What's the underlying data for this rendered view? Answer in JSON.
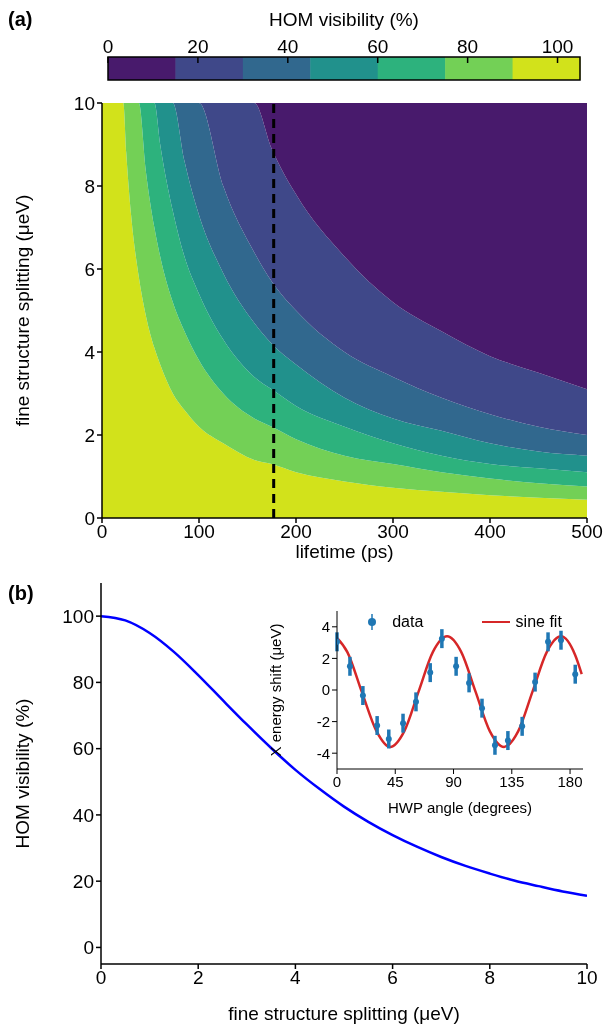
{
  "chart_data": [
    {
      "type": "area",
      "title": "(a)",
      "xlabel": "lifetime (ps)",
      "ylabel": "fine structure splitting (μeV)",
      "clabel": "HOM visibility (%)",
      "clim": [
        0,
        105
      ],
      "cticks": [
        0,
        20,
        40,
        60,
        80,
        100
      ],
      "xlim": [
        0,
        500
      ],
      "xticks": [
        0,
        100,
        200,
        300,
        400,
        500
      ],
      "ylim": [
        0,
        10
      ],
      "yticks": [
        0,
        2,
        4,
        6,
        8,
        10
      ],
      "x": [
        0,
        22,
        25,
        30,
        38,
        45,
        54,
        60,
        73,
        85,
        100,
        125,
        157,
        175,
        200,
        250,
        300,
        350,
        400,
        450,
        500
      ],
      "stacked": true,
      "series": [
        {
          "color": "#d2e21b",
          "values": [
            10,
            10,
            8.8,
            7.3,
            5.8,
            4.9,
            4.1,
            3.7,
            3.0,
            2.6,
            2.2,
            1.8,
            1.4,
            1.3,
            1.1,
            0.88,
            0.73,
            0.63,
            0.55,
            0.49,
            0.44
          ]
        },
        {
          "color": "#73d056",
          "values": [
            0,
            0,
            1.2,
            2.7,
            4.2,
            3.5,
            2.9,
            2.6,
            2.2,
            1.9,
            1.6,
            1.2,
            1.0,
            0.9,
            0.8,
            0.62,
            0.57,
            0.47,
            0.4,
            0.35,
            0.32
          ]
        },
        {
          "color": "#2db27d",
          "values": [
            0,
            0,
            0,
            0,
            0,
            1.6,
            3.0,
            2.7,
            2.2,
            1.8,
            1.6,
            1.3,
            1.0,
            0.9,
            0.8,
            0.7,
            0.5,
            0.4,
            0.35,
            0.36,
            0.34
          ]
        },
        {
          "color": "#21918c",
          "values": [
            0,
            0,
            0,
            0,
            0,
            0,
            0,
            1.0,
            2.6,
            2.3,
            1.9,
            1.6,
            1.3,
            1.1,
            1.0,
            0.7,
            0.6,
            0.6,
            0.5,
            0.4,
            0.4
          ]
        },
        {
          "color": "#31688e",
          "values": [
            0,
            0,
            0,
            0,
            0,
            0,
            0,
            0,
            0,
            1.4,
            2.7,
            2.1,
            1.7,
            1.5,
            1.3,
            1.1,
            1.0,
            0.8,
            0.7,
            0.6,
            0.5
          ]
        },
        {
          "color": "#3f4889",
          "values": [
            0,
            0,
            0,
            0,
            0,
            0,
            0,
            0,
            0,
            0,
            0,
            2.0,
            3.6,
            3.2,
            2.8,
            2.3,
            1.8,
            1.6,
            1.4,
            1.3,
            1.1
          ]
        },
        {
          "color": "#481a6c",
          "values": [
            0,
            0,
            0,
            0,
            0,
            0,
            0,
            0,
            0,
            0,
            0,
            0,
            0,
            1.1,
            2.2,
            3.7,
            4.8,
            5.5,
            6.1,
            6.5,
            6.9
          ]
        }
      ],
      "ref_lines": [
        {
          "axis": "x",
          "value": 177,
          "color": "#000000",
          "line_style": "dashed"
        }
      ]
    },
    {
      "type": "line",
      "title": "(b)",
      "xlabel": "fine structure splitting (μeV)",
      "ylabel": "HOM visibility (%)",
      "xlim": [
        0,
        10
      ],
      "xticks": [
        0,
        2,
        4,
        6,
        8,
        10
      ],
      "ylim": [
        -5,
        110
      ],
      "yticks": [
        0,
        20,
        40,
        60,
        80,
        100
      ],
      "series": [
        {
          "color": "#0000ff",
          "x": [
            0,
            0.5,
            1,
            1.5,
            2,
            2.5,
            3,
            3.5,
            4,
            4.5,
            5,
            5.5,
            6,
            6.5,
            7,
            7.5,
            8,
            8.5,
            9,
            9.5,
            10
          ],
          "values": [
            100,
            98.7,
            94.9,
            89.2,
            82.2,
            74.7,
            67.3,
            60.2,
            53.6,
            47.8,
            42.5,
            37.9,
            33.9,
            30.4,
            27.3,
            24.6,
            22.3,
            20.2,
            18.5,
            16.9,
            15.6
          ]
        }
      ]
    },
    {
      "type": "scatter",
      "xlabel": "HWP angle (degrees)",
      "ylabel": "X energy shift (μeV)",
      "xlim": [
        0,
        190
      ],
      "xticks": [
        0,
        45,
        90,
        135,
        180
      ],
      "ylim": [
        -5,
        5
      ],
      "yticks": [
        -4,
        -2,
        0,
        2,
        4
      ],
      "legend": "top",
      "series": [
        {
          "name": "data",
          "marker": "circle",
          "color": "#1f77b4",
          "x": [
            0,
            10,
            20,
            31,
            40,
            51,
            61,
            72,
            81,
            92,
            102,
            112,
            122,
            132,
            143,
            153,
            163,
            173,
            184
          ],
          "values": [
            3.05,
            1.5,
            -0.35,
            -2.25,
            -3.1,
            -2.1,
            -0.75,
            1.1,
            3.25,
            1.5,
            0.45,
            -1.15,
            -3.5,
            -3.2,
            -2.3,
            0.5,
            3.05,
            3.15,
            1.0
          ],
          "errors": [
            0.6,
            0.6,
            0.6,
            0.6,
            0.6,
            0.6,
            0.6,
            0.6,
            0.6,
            0.6,
            0.6,
            0.6,
            0.6,
            0.6,
            0.6,
            0.6,
            0.6,
            0.6,
            0.6
          ]
        },
        {
          "name": "sine fit",
          "type": "line",
          "color": "#d62728",
          "x": [
            0,
            8,
            19.5,
            30.5,
            41,
            52,
            63,
            74,
            85,
            96,
            107,
            118,
            129,
            140,
            151,
            162,
            173,
            184,
            189
          ],
          "values": [
            3.3,
            2.4,
            -0.2,
            -2.6,
            -3.6,
            -2.6,
            -0.1,
            2.4,
            3.4,
            2.4,
            -0.1,
            -2.6,
            -3.6,
            -2.6,
            -0.1,
            2.4,
            3.4,
            2.2,
            1.0
          ]
        }
      ]
    }
  ]
}
